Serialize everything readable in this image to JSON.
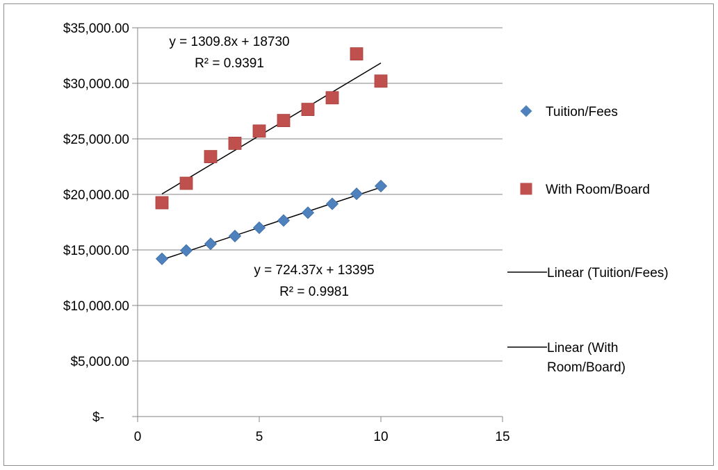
{
  "chart_data": {
    "type": "scatter",
    "title": "",
    "xlabel": "",
    "ylabel": "",
    "xlim": [
      0,
      15
    ],
    "ylim": [
      0,
      35000
    ],
    "x_ticks": [
      0,
      5,
      10,
      15
    ],
    "x_tick_labels": [
      "0",
      "5",
      "10",
      "15"
    ],
    "y_ticks": [
      0,
      5000,
      10000,
      15000,
      20000,
      25000,
      30000,
      35000
    ],
    "y_tick_labels": [
      "$-",
      "$5,000.00",
      "$10,000.00",
      "$15,000.00",
      "$20,000.00",
      "$25,000.00",
      "$30,000.00",
      "$35,000.00"
    ],
    "grid": "horizontal",
    "legend_position": "right",
    "series": [
      {
        "name": "Tuition/Fees",
        "marker": "diamond",
        "color": "#4F81BD",
        "x": [
          1,
          2,
          3,
          4,
          5,
          6,
          7,
          8,
          9,
          10
        ],
        "values": [
          14200,
          14950,
          15550,
          16250,
          17000,
          17650,
          18350,
          19150,
          20050,
          20750
        ]
      },
      {
        "name": "With Room/Board",
        "marker": "square",
        "color": "#C0504D",
        "x": [
          1,
          2,
          3,
          4,
          5,
          6,
          7,
          8,
          9,
          10
        ],
        "values": [
          19250,
          21000,
          23400,
          24600,
          25700,
          26650,
          27650,
          28700,
          32650,
          30200
        ]
      }
    ],
    "trendlines": [
      {
        "name": "Linear (Tuition/Fees)",
        "series": "Tuition/Fees",
        "slope": 724.37,
        "intercept": 13395,
        "x_range": [
          1,
          10
        ],
        "color": "#000000",
        "equation": "y = 724.37x + 13395",
        "r_squared": "R² = 0.9981"
      },
      {
        "name": "Linear (With Room/Board)",
        "series": "With Room/Board",
        "slope": 1309.8,
        "intercept": 18730,
        "x_range": [
          1,
          10
        ],
        "color": "#000000",
        "equation": "y = 1309.8x + 18730",
        "r_squared": "R² = 0.9391"
      }
    ],
    "legend": [
      {
        "label": "Tuition/Fees",
        "kind": "diamond",
        "color": "#4F81BD",
        "lines": [
          "Tuition/Fees"
        ]
      },
      {
        "label": "With Room/Board",
        "kind": "square",
        "color": "#C0504D",
        "lines": [
          "With Room/Board"
        ]
      },
      {
        "label": "Linear (Tuition/Fees)",
        "kind": "line",
        "color": "#000000",
        "lines": [
          "Linear (Tuition/Fees)"
        ]
      },
      {
        "label": "Linear (With Room/Board)",
        "kind": "line",
        "color": "#000000",
        "lines": [
          "Linear (With",
          "Room/Board)"
        ]
      }
    ]
  }
}
